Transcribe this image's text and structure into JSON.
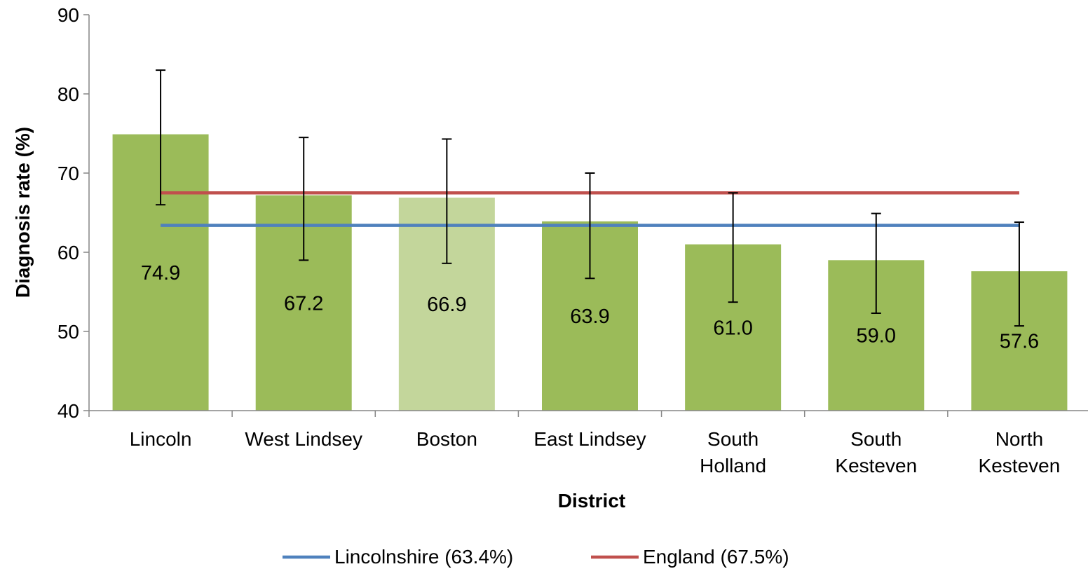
{
  "chart_data": {
    "type": "bar",
    "title": "",
    "xlabel": "District",
    "ylabel": "Diagnosis rate (%)",
    "ylim": [
      40,
      90
    ],
    "yticks": [
      40,
      50,
      60,
      70,
      80,
      90
    ],
    "grid": false,
    "legend_position": "bottom",
    "categories": [
      [
        "Lincoln"
      ],
      [
        "West Lindsey"
      ],
      [
        "Boston"
      ],
      [
        "East Lindsey"
      ],
      [
        "South",
        "Holland"
      ],
      [
        "South",
        "Kesteven"
      ],
      [
        "North",
        "Kesteven"
      ]
    ],
    "values": [
      74.9,
      67.2,
      66.9,
      63.9,
      61.0,
      59.0,
      57.6
    ],
    "value_labels": [
      "74.9",
      "67.2",
      "66.9",
      "63.9",
      "61.0",
      "59.0",
      "57.6"
    ],
    "error_bars": {
      "lower": [
        66.0,
        59.0,
        58.6,
        56.7,
        53.7,
        52.3,
        50.7
      ],
      "upper": [
        83.0,
        74.5,
        74.3,
        70.0,
        67.5,
        64.9,
        63.8
      ]
    },
    "bar_colors": [
      "#9BBB59",
      "#9BBB59",
      "#C3D69B",
      "#9BBB59",
      "#9BBB59",
      "#9BBB59",
      "#9BBB59"
    ],
    "reference_lines": [
      {
        "name": "Lincolnshire (63.4%)",
        "value": 63.4,
        "color": "#4F81BD"
      },
      {
        "name": "England (67.5%)",
        "value": 67.5,
        "color": "#C0504D"
      }
    ]
  }
}
